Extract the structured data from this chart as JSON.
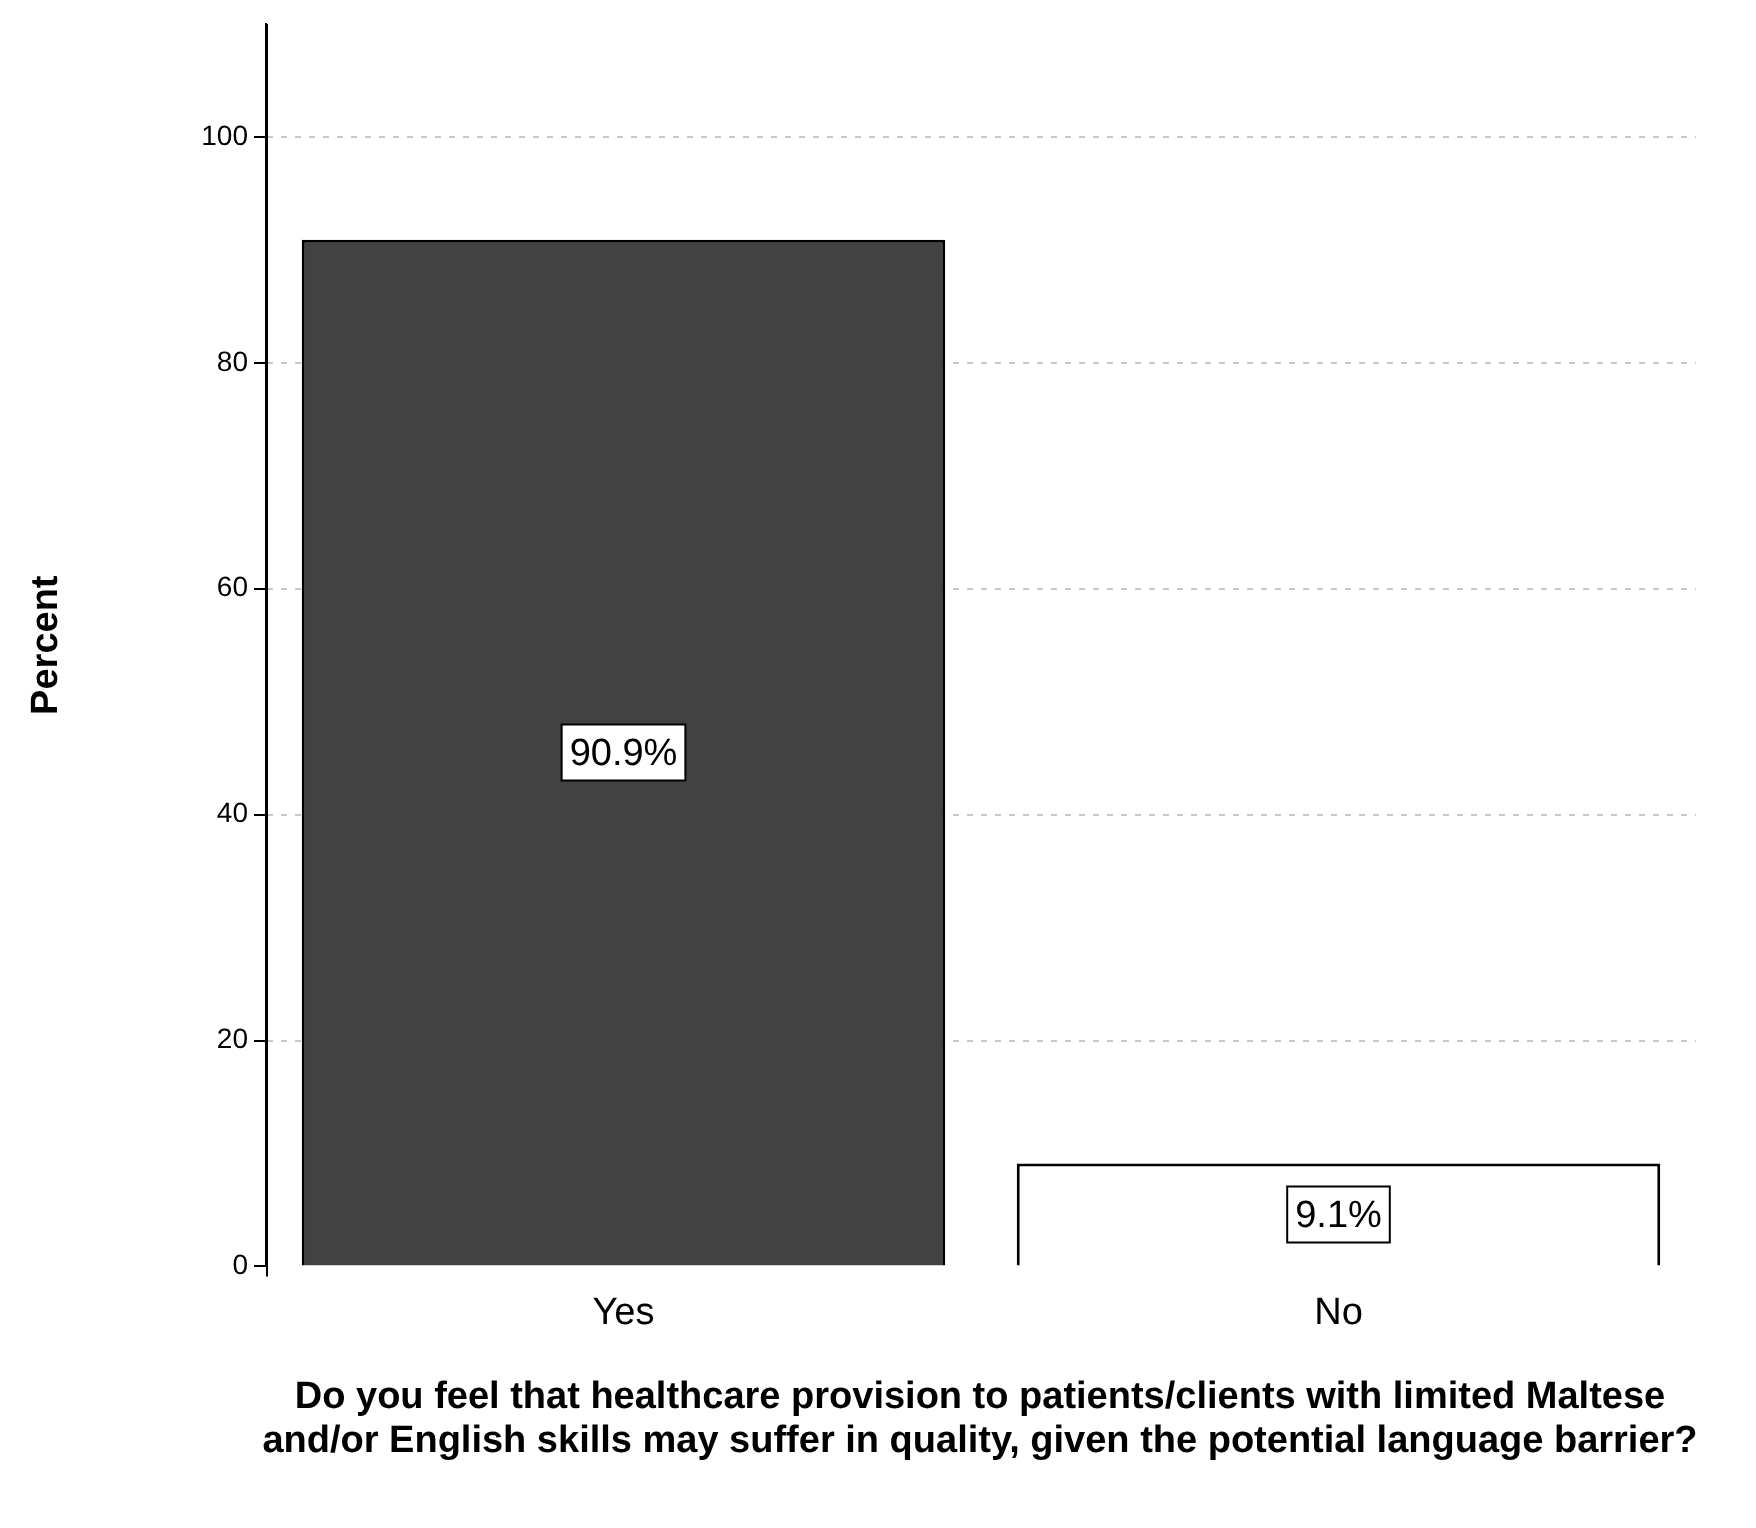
{
  "chart_data": {
    "type": "bar",
    "xlabel": "Do you feel that healthcare provision to patients/clients with limited Maltese and/or English skills may suffer in quality, given the potential language barrier?",
    "ylabel": "Percent",
    "categories": [
      "Yes",
      "No"
    ],
    "values": [
      90.9,
      9.1
    ],
    "colors": [
      "#424242",
      "#ffffff"
    ],
    "value_labels": [
      "90.9%",
      "9.1%"
    ],
    "ylim": [
      0,
      110
    ],
    "yticks": [
      0,
      20,
      40,
      60,
      80,
      100
    ],
    "grid": "y",
    "legend": false
  }
}
